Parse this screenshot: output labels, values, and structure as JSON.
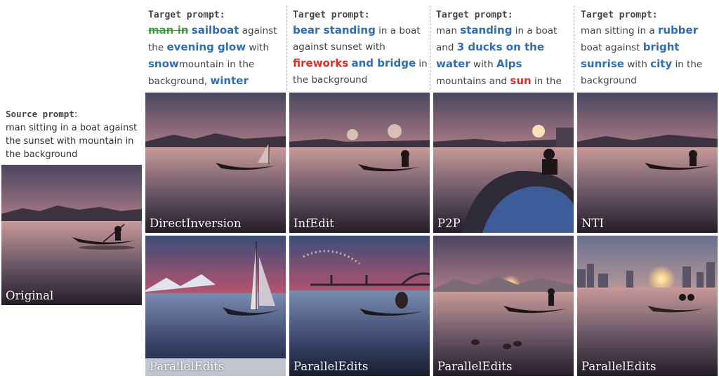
{
  "source": {
    "header": "Source prompt",
    "header_colon": ":",
    "text": "man sitting in a boat against the sunset with mountain in the background"
  },
  "original_label": "Original",
  "columns": [
    {
      "header": "Target prompt:",
      "segments": [
        {
          "t": "man in",
          "s": "g"
        },
        {
          "t": " ",
          "s": ""
        },
        {
          "t": "sailboat",
          "s": "b"
        },
        {
          "t": " against the ",
          "s": ""
        },
        {
          "t": "evening glow",
          "s": "b"
        },
        {
          "t": " with ",
          "s": ""
        },
        {
          "t": "snow",
          "s": "b"
        },
        {
          "t": "mountain in the background, ",
          "s": ""
        },
        {
          "t": "winter scene",
          "s": "b"
        }
      ],
      "top_label": "DirectInversion",
      "bottom_label": "ParallelEdits"
    },
    {
      "header": "Target prompt:",
      "segments": [
        {
          "t": "bear standing",
          "s": "b"
        },
        {
          "t": " in a boat against sunset with ",
          "s": ""
        },
        {
          "t": "fireworks",
          "s": "r"
        },
        {
          "t": " ",
          "s": ""
        },
        {
          "t": "and bridge",
          "s": "b"
        },
        {
          "t": " in the background",
          "s": ""
        }
      ],
      "top_label": "InfEdit",
      "bottom_label": "ParallelEdits"
    },
    {
      "header": "Target prompt:",
      "segments": [
        {
          "t": "man ",
          "s": ""
        },
        {
          "t": "standing",
          "s": "b"
        },
        {
          "t": " in a boat and ",
          "s": ""
        },
        {
          "t": "3 ducks on the water",
          "s": "b"
        },
        {
          "t": " with ",
          "s": ""
        },
        {
          "t": "Alps",
          "s": "b"
        },
        {
          "t": " mountains and ",
          "s": ""
        },
        {
          "t": "sun",
          "s": "r"
        },
        {
          "t": " in the background",
          "s": ""
        }
      ],
      "top_label": "P2P",
      "bottom_label": "ParallelEdits"
    },
    {
      "header": "Target prompt:",
      "segments": [
        {
          "t": "man sitting in a ",
          "s": ""
        },
        {
          "t": "rubber",
          "s": "b"
        },
        {
          "t": " boat against ",
          "s": ""
        },
        {
          "t": "bright sunrise",
          "s": "b"
        },
        {
          "t": " with ",
          "s": ""
        },
        {
          "t": "city",
          "s": "b"
        },
        {
          "t": " in the background",
          "s": ""
        }
      ],
      "top_label": "NTI",
      "bottom_label": "ParallelEdits"
    }
  ],
  "colors": {
    "edit_blue": "#2d6fb8",
    "edit_red": "#d9302a",
    "edit_green": "#3aa53a"
  }
}
